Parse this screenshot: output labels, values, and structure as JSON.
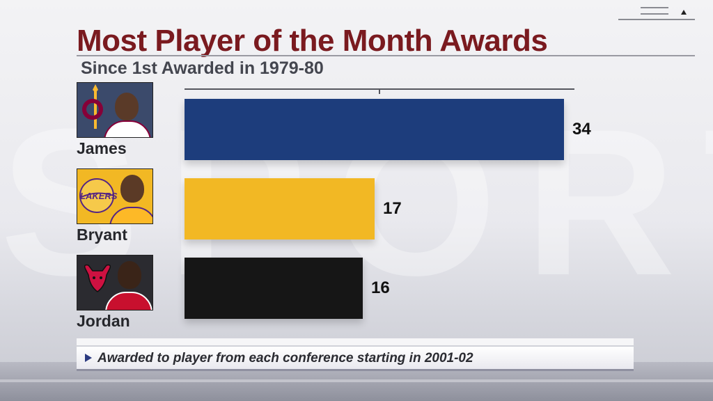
{
  "title": "Most Player of the Month Awards",
  "subtitle": "Since 1st Awarded in 1979-80",
  "footnote": "Awarded to player from each conference starting in 2001-02",
  "background_watermark": "SPORT",
  "chart_data": {
    "type": "bar",
    "orientation": "horizontal",
    "title": "Most Player of the Month Awards",
    "subtitle": "Since 1st Awarded in 1979-80",
    "categories": [
      "James",
      "Bryant",
      "Jordan"
    ],
    "values": [
      34,
      17,
      16
    ],
    "bar_colors": [
      "#1d3d7c",
      "#f2b824",
      "#161616"
    ],
    "xlim": [
      0,
      34
    ],
    "grid": false,
    "legend": "none"
  },
  "players": [
    {
      "name": "James",
      "value": "34",
      "team_colors": [
        "#860038",
        "#fdbb30",
        "#002d62"
      ],
      "icon": "cavaliers-logo"
    },
    {
      "name": "Bryant",
      "value": "17",
      "team_colors": [
        "#552583",
        "#fdb927"
      ],
      "icon": "lakers-logo"
    },
    {
      "name": "Jordan",
      "value": "16",
      "team_colors": [
        "#ce1141",
        "#000000"
      ],
      "icon": "bulls-logo"
    }
  ],
  "colors": {
    "title": "#7a1a1f",
    "subtitle": "#44464f",
    "accent": "#2b3a80"
  }
}
